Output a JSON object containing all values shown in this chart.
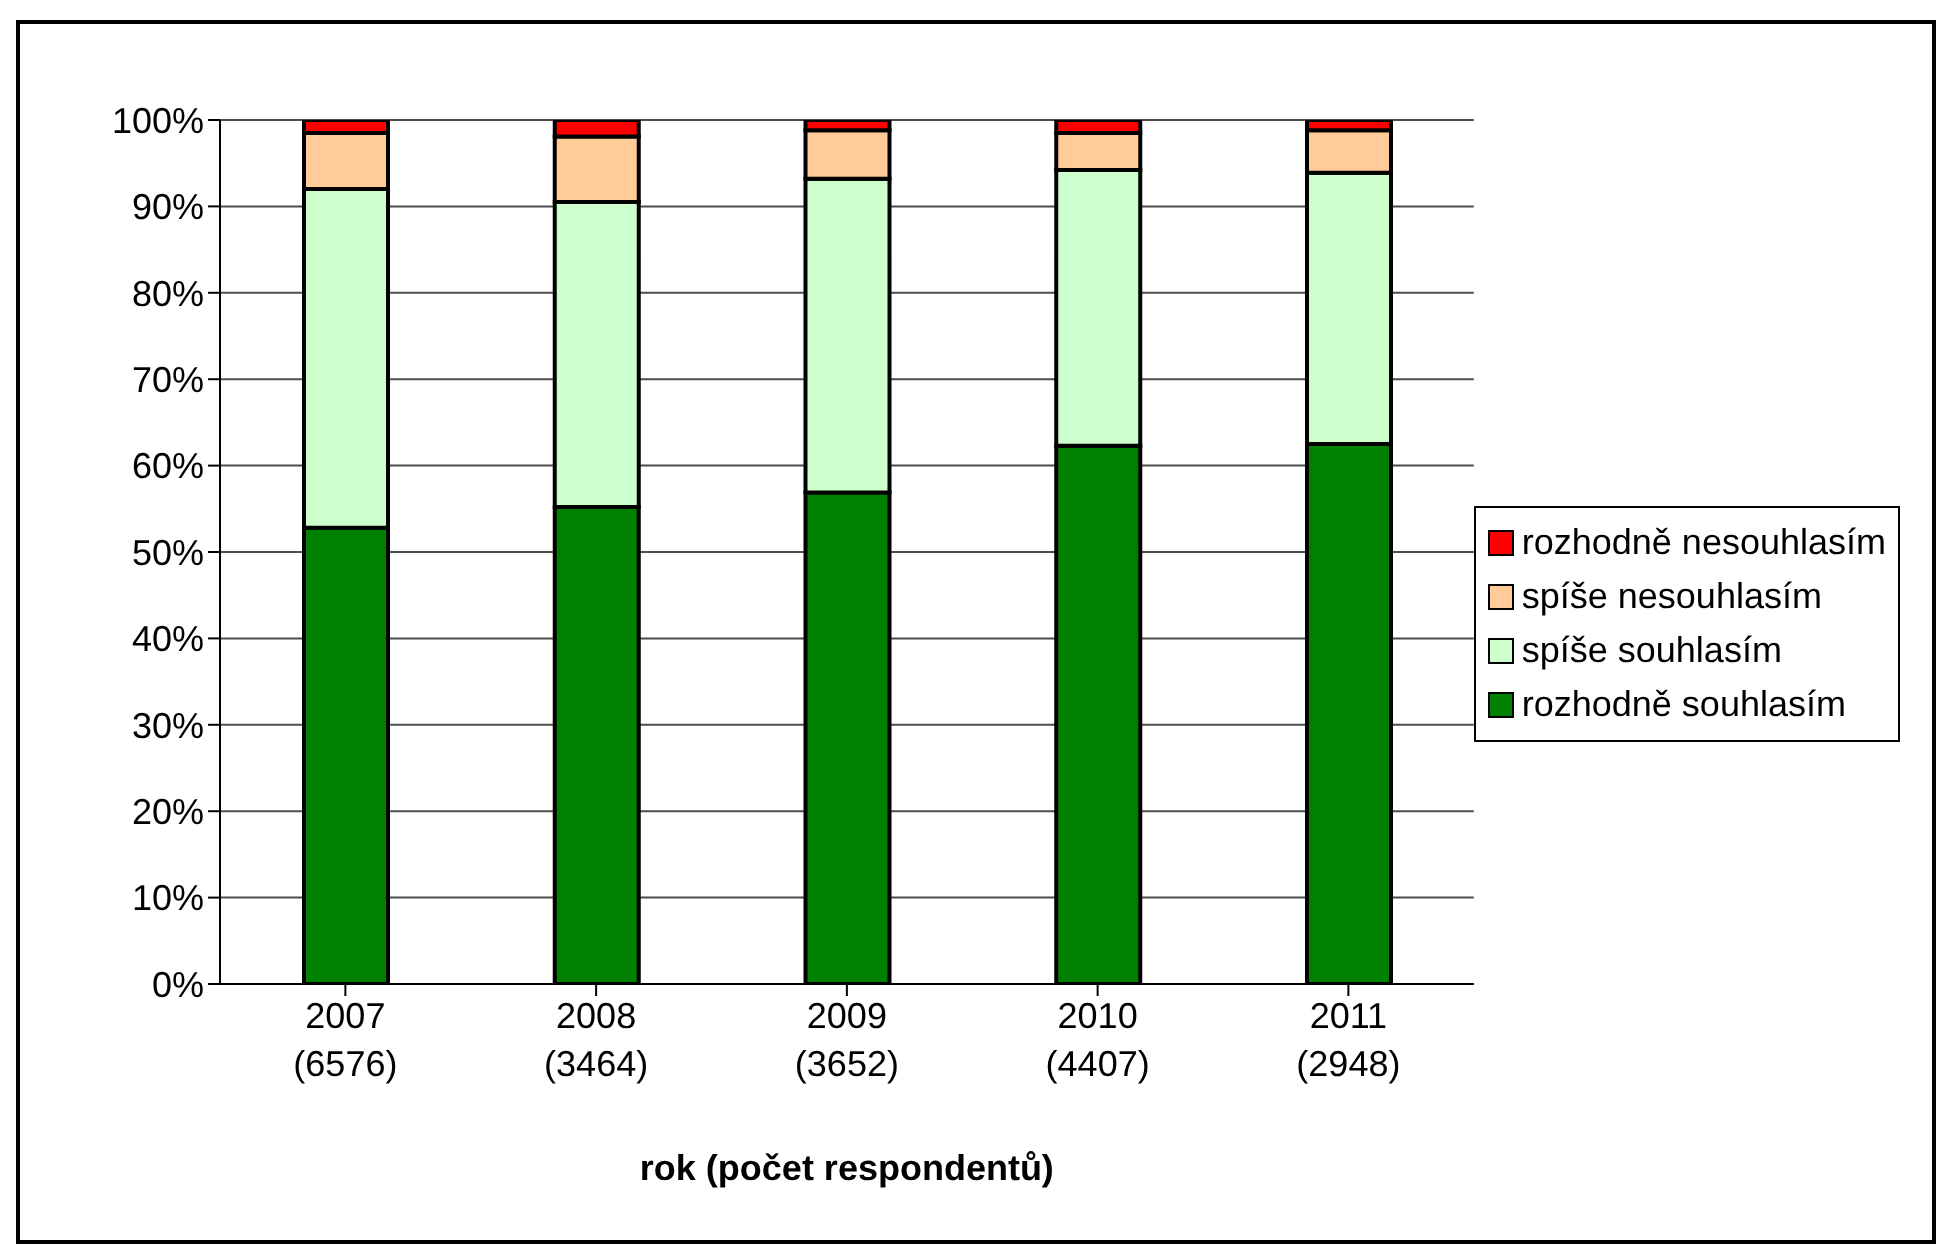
{
  "chart_data": {
    "type": "bar",
    "stacked": true,
    "xlabel": "rok (počet respondentů)",
    "categories": [
      "2007\n(6576)",
      "2008\n(3464)",
      "2009\n(3652)",
      "2010\n(4407)",
      "2011\n(2948)"
    ],
    "series": [
      {
        "name": "rozhodně souhlasím",
        "color": "#008000",
        "values": [
          52.8,
          55.2,
          56.9,
          62.3,
          62.5
        ]
      },
      {
        "name": "spíše souhlasím",
        "color": "#ccffcc",
        "values": [
          39.2,
          35.3,
          36.3,
          31.9,
          31.4
        ]
      },
      {
        "name": "spíše nesouhlasím",
        "color": "#ffcc99",
        "values": [
          6.5,
          7.6,
          5.6,
          4.3,
          4.9
        ]
      },
      {
        "name": "rozhodně nesouhlasím",
        "color": "#ff0000",
        "values": [
          1.5,
          1.9,
          1.2,
          1.5,
          1.2
        ]
      }
    ],
    "ylim": [
      0,
      100
    ],
    "yticks": [
      {
        "value": 0,
        "label": "0%"
      },
      {
        "value": 10,
        "label": "10%"
      },
      {
        "value": 20,
        "label": "20%"
      },
      {
        "value": 30,
        "label": "30%"
      },
      {
        "value": 40,
        "label": "40%"
      },
      {
        "value": 50,
        "label": "50%"
      },
      {
        "value": 60,
        "label": "60%"
      },
      {
        "value": 70,
        "label": "70%"
      },
      {
        "value": 80,
        "label": "80%"
      },
      {
        "value": 90,
        "label": "90%"
      },
      {
        "value": 100,
        "label": "100%"
      }
    ],
    "grid": "y",
    "legend": "right"
  }
}
